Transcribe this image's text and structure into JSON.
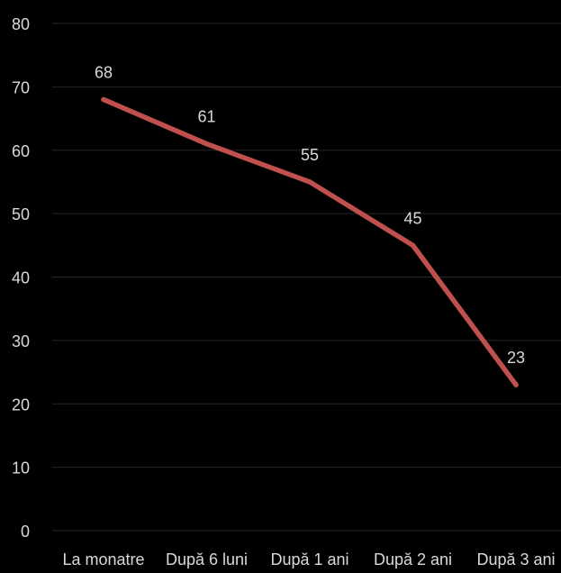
{
  "chart_data": {
    "type": "line",
    "categories": [
      "La monatre",
      "După 6 luni",
      "După 1 ani",
      "După 2 ani",
      "După 3 ani"
    ],
    "series": [
      {
        "values": [
          68,
          61,
          55,
          45,
          23
        ],
        "color": "#c0504d"
      }
    ],
    "data_labels": [
      "68",
      "61",
      "55",
      "45",
      "23"
    ],
    "ylim": [
      0,
      80
    ],
    "yticks": [
      0,
      10,
      20,
      30,
      40,
      50,
      60,
      70,
      80
    ],
    "ytick_labels": [
      "0",
      "10",
      "20",
      "30",
      "40",
      "50",
      "60",
      "70",
      "80"
    ],
    "grid": true,
    "legend": "none",
    "title": "",
    "xlabel": "",
    "ylabel": "",
    "colors": {
      "background": "#000000",
      "text": "#d9d9d9",
      "gridline": "#262626"
    }
  }
}
